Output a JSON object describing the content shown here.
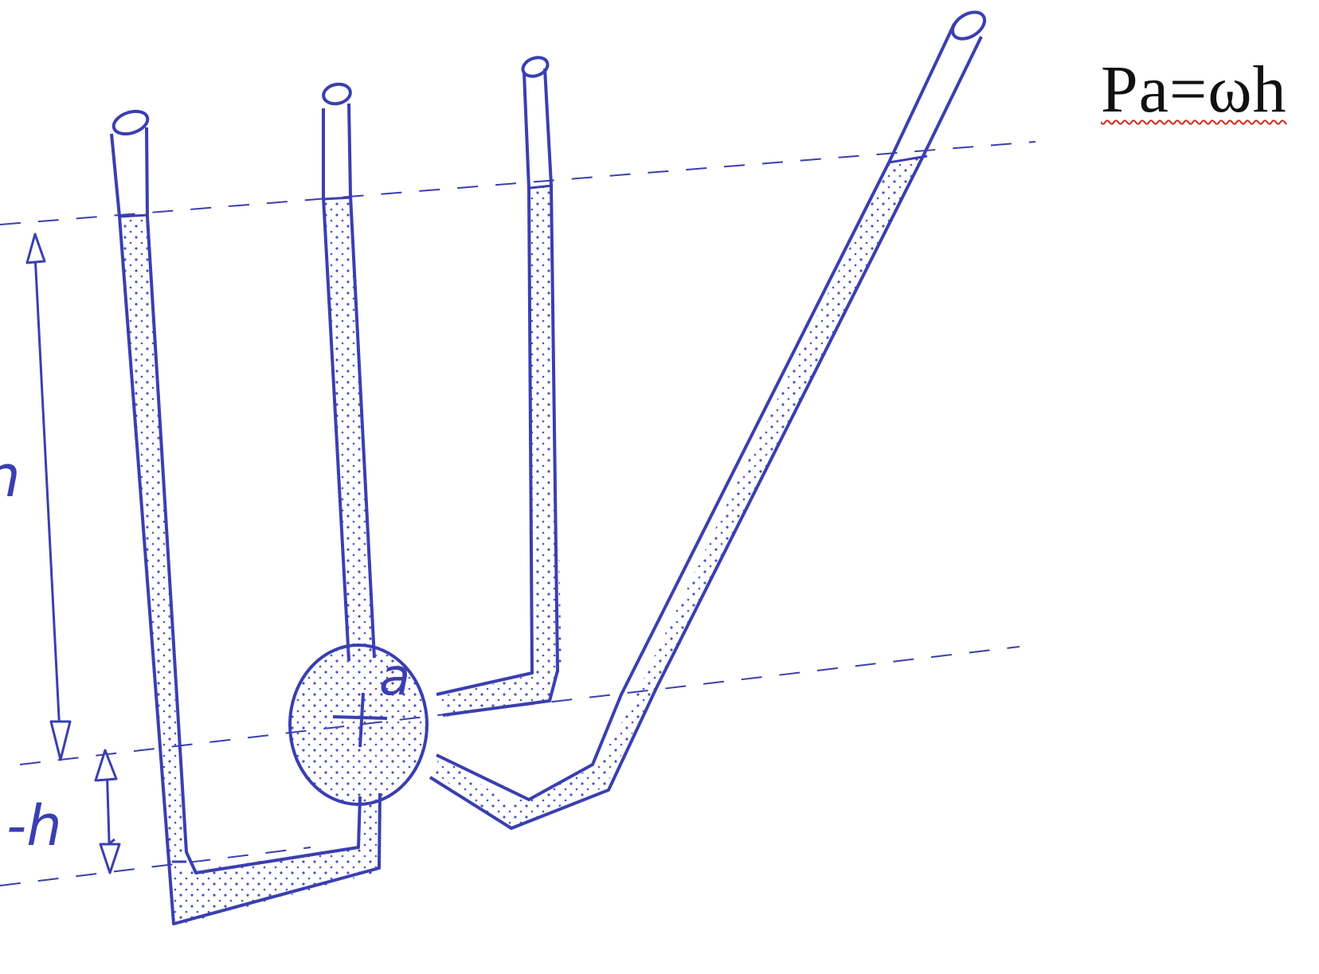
{
  "formula": {
    "text": "Pa=ωh"
  },
  "labels": {
    "h_left": "h",
    "minus_h": "-h",
    "point_a": "a"
  },
  "colors": {
    "ink": "#3a3fb0",
    "fluid_dots": "#4d52c4",
    "formula_text": "#111111",
    "spellcheck_underline": "#d42a1e",
    "background": "#ffffff"
  }
}
